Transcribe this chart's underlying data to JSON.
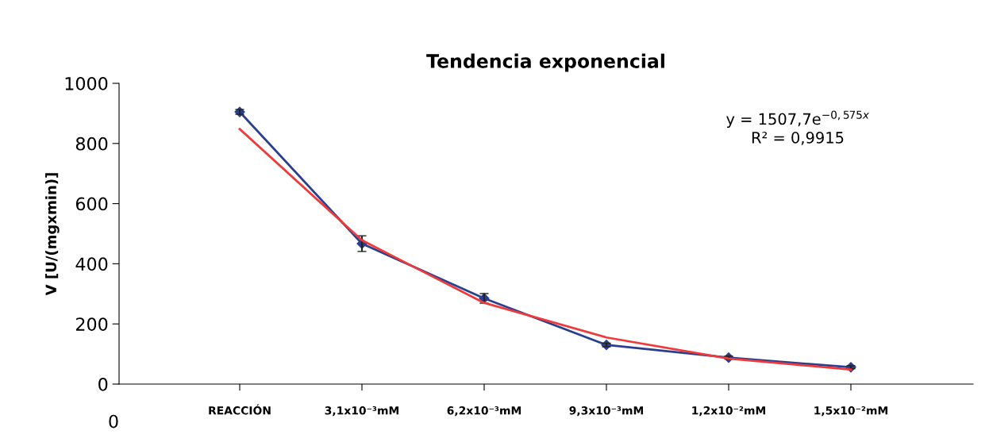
{
  "chart_data": {
    "type": "line",
    "title": "Tendencia exponencial",
    "ylabel": "V [U/(mgxmin)]",
    "categories": [
      "REACCIÓN",
      "3,1x10⁻³mM",
      "6,2x10⁻³mM",
      "9,3x10⁻³mM",
      "1,2x10⁻²mM",
      "1,5x10⁻²mM"
    ],
    "series": [
      {
        "color": "#2b3f8f",
        "values": [
          905,
          467,
          285,
          130,
          88,
          56
        ],
        "errors": [
          8,
          26,
          16,
          6,
          5,
          5
        ],
        "marker": "diamond"
      },
      {
        "color": "#ee3a3a",
        "values": [
          848,
          478,
          270,
          155,
          85,
          48
        ],
        "marker": "none"
      }
    ],
    "ylim": [
      0,
      1000
    ],
    "yticks": [
      0,
      200,
      400,
      600,
      800,
      1000
    ],
    "grid": false,
    "legend": false,
    "annotations": [
      "y = 1507,7e$^{−0,575x}$\nR² = 0,9915",
      "0"
    ]
  }
}
